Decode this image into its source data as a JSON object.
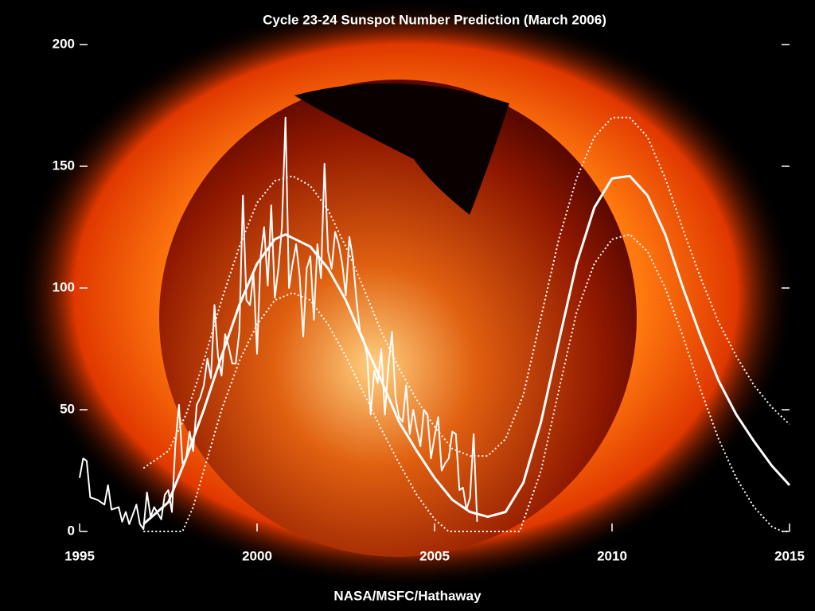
{
  "chart_data": {
    "type": "line",
    "title": "Cycle 23-24 Sunspot Number Prediction (March 2006)",
    "source": "NASA/MSFC/Hathaway",
    "xlim": [
      1995,
      2015
    ],
    "xticks": [
      1995,
      2000,
      2005,
      2010,
      2015
    ],
    "ylim": [
      0,
      200
    ],
    "yticks": [
      0,
      50,
      100,
      150,
      200
    ],
    "series": [
      {
        "color": "#ffffff",
        "style": "solid",
        "width": 2,
        "x": [
          1995.0,
          1995.1,
          1995.2,
          1995.3,
          1995.5,
          1995.7,
          1995.8,
          1995.9,
          1996.1,
          1996.2,
          1996.3,
          1996.4,
          1996.5,
          1996.6,
          1996.7,
          1996.8,
          1996.9,
          1997.0,
          1997.1,
          1997.3,
          1997.4,
          1997.5,
          1997.6,
          1997.7,
          1997.8,
          1997.9,
          1998.0,
          1998.1,
          1998.2,
          1998.3,
          1998.4,
          1998.5,
          1998.6,
          1998.7,
          1998.8,
          1998.9,
          1999.0,
          1999.1,
          1999.2,
          1999.3,
          1999.4,
          1999.5,
          1999.6,
          1999.7,
          1999.8,
          1999.9,
          2000.0,
          2000.1,
          2000.2,
          2000.3,
          2000.4,
          2000.5,
          2000.6,
          2000.7,
          2000.8,
          2000.9,
          2001.0,
          2001.1,
          2001.2,
          2001.3,
          2001.4,
          2001.5,
          2001.6,
          2001.7,
          2001.8,
          2001.9,
          2002.0,
          2002.1,
          2002.2,
          2002.3,
          2002.4,
          2002.5,
          2002.6,
          2002.7,
          2002.8,
          2002.9,
          2003.0,
          2003.1,
          2003.2,
          2003.3,
          2003.4,
          2003.5,
          2003.6,
          2003.7,
          2003.8,
          2003.9,
          2004.0,
          2004.1,
          2004.2,
          2004.3,
          2004.4,
          2004.5,
          2004.6,
          2004.7,
          2004.8,
          2004.9,
          2005.0,
          2005.1,
          2005.2,
          2005.3,
          2005.4,
          2005.5,
          2005.6,
          2005.7,
          2005.8,
          2005.9,
          2006.0,
          2006.1,
          2006.2
        ],
        "values": [
          22,
          30,
          29,
          14,
          13,
          11,
          19,
          9,
          10,
          4,
          8,
          3,
          7,
          11,
          3,
          1,
          16,
          6,
          10,
          5,
          15,
          17,
          8,
          36,
          52,
          28,
          30,
          41,
          33,
          52,
          55,
          60,
          71,
          63,
          93,
          72,
          64,
          81,
          76,
          69,
          69,
          82,
          138,
          95,
          93,
          106,
          73,
          113,
          125,
          101,
          134,
          96,
          108,
          125,
          170,
          100,
          110,
          118,
          105,
          80,
          108,
          113,
          87,
          118,
          104,
          151,
          115,
          108,
          123,
          118,
          110,
          97,
          121,
          112,
          95,
          82,
          79,
          72,
          48,
          66,
          61,
          75,
          48,
          68,
          82,
          55,
          47,
          45,
          60,
          40,
          50,
          42,
          35,
          50,
          48,
          30,
          39,
          47,
          25,
          28,
          30,
          41,
          40,
          17,
          18,
          9,
          14,
          40,
          4
        ]
      },
      {
        "color": "#ffffff",
        "style": "solid",
        "width": 3,
        "x": [
          1996.8,
          1997.5,
          1998,
          1998.5,
          1999,
          1999.5,
          2000,
          2000.5,
          2000.8,
          2001.5,
          2002,
          2002.5,
          2003,
          2003.5,
          2004,
          2004.5,
          2005,
          2005.5,
          2006,
          2006.5,
          2007,
          2007.5,
          2008,
          2008.5,
          2009,
          2009.5,
          2010,
          2010.5,
          2011,
          2011.5,
          2012,
          2012.5,
          2013,
          2013.5,
          2014,
          2014.5,
          2015
        ],
        "values": [
          3,
          12,
          30,
          50,
          72,
          93,
          110,
          120,
          122,
          117,
          108,
          95,
          78,
          62,
          45,
          33,
          22,
          13,
          8,
          6,
          8,
          20,
          45,
          78,
          110,
          133,
          145,
          146,
          138,
          122,
          100,
          80,
          62,
          48,
          37,
          27,
          19
        ]
      },
      {
        "color": "#ffffff",
        "style": "dotted",
        "width": 2,
        "x": [
          1996.8,
          1997.5,
          1998,
          1998.5,
          1999,
          1999.5,
          2000,
          2000.5,
          2001,
          2001.5,
          2002,
          2002.5,
          2003,
          2003.5,
          2004,
          2004.5,
          2005,
          2005.5,
          2006,
          2006.5,
          2007,
          2007.5,
          2008,
          2008.5,
          2009,
          2009.5,
          2010,
          2010.5,
          2011,
          2011.5,
          2012,
          2012.5,
          2013,
          2013.5,
          2014,
          2014.5,
          2015
        ],
        "values": [
          26,
          33,
          48,
          70,
          95,
          117,
          135,
          144,
          146,
          142,
          132,
          117,
          100,
          82,
          67,
          54,
          43,
          34,
          31,
          31,
          38,
          56,
          88,
          120,
          145,
          162,
          170,
          170,
          162,
          145,
          124,
          104,
          86,
          72,
          60,
          51,
          44
        ]
      },
      {
        "color": "#ffffff",
        "style": "dotted",
        "width": 2,
        "x": [
          1996.8,
          1997.9,
          1998.2,
          1998.5,
          1999,
          1999.5,
          2000,
          2000.5,
          2001,
          2001.5,
          2002,
          2002.5,
          2003,
          2003.5,
          2004,
          2004.5,
          2005,
          2005.4,
          2007.4,
          2008,
          2008.5,
          2009,
          2009.5,
          2010,
          2010.5,
          2011,
          2011.5,
          2012,
          2012.5,
          2013,
          2013.5,
          2014,
          2014.5,
          2014.8,
          2015
        ],
        "values": [
          0,
          0,
          10,
          25,
          50,
          70,
          85,
          95,
          98,
          95,
          85,
          72,
          57,
          42,
          28,
          15,
          5,
          0,
          0,
          25,
          58,
          90,
          110,
          120,
          122,
          115,
          100,
          80,
          58,
          38,
          22,
          10,
          2,
          0,
          0
        ]
      }
    ]
  }
}
